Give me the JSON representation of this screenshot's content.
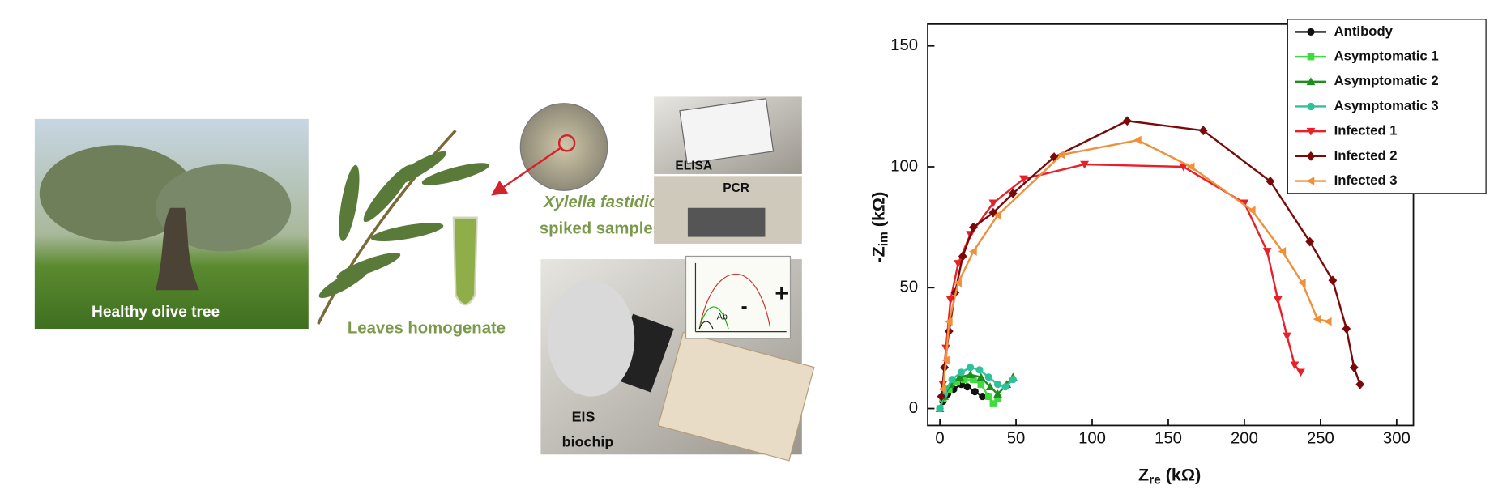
{
  "illustration": {
    "tree_label": "Healthy  olive tree",
    "leaves_label": "Leaves homogenate",
    "bacteria_label": [
      "Xylella fastidiosa",
      "spiked samples"
    ],
    "elisa_label": "ELISA",
    "pcr_label": "PCR",
    "biochip_label": [
      "EIS",
      "biochip"
    ],
    "inset_labels": [
      "Ab",
      "-",
      "+"
    ]
  },
  "chart_data": {
    "type": "scatter",
    "xlabel": [
      "Z",
      "re",
      " (kΩ)"
    ],
    "ylabel": [
      "-Z",
      "im",
      " (kΩ)"
    ],
    "xlim": [
      -8,
      311
    ],
    "ylim": [
      -7,
      159
    ],
    "xticks": [
      0,
      50,
      100,
      150,
      200,
      250,
      300
    ],
    "yticks": [
      0,
      50,
      100,
      150
    ],
    "legend": "upper right",
    "series": [
      {
        "name": "Antibody",
        "color": "#111111",
        "marker": "circle",
        "x": [
          0,
          2,
          5,
          9,
          14,
          18,
          23,
          28,
          32
        ],
        "values": [
          0,
          3,
          6,
          8,
          10,
          9,
          7,
          5,
          5
        ]
      },
      {
        "name": "Asymptomatic 1",
        "color": "#3ddc3d",
        "marker": "square",
        "x": [
          0,
          2,
          6,
          11,
          16,
          22,
          27,
          32,
          35,
          38
        ],
        "values": [
          0,
          4,
          8,
          11,
          12,
          12,
          10,
          5,
          2,
          4
        ]
      },
      {
        "name": "Asymptomatic 2",
        "color": "#1e8c1e",
        "marker": "triangle-up",
        "x": [
          0,
          3,
          7,
          13,
          20,
          27,
          33,
          38,
          44,
          48
        ],
        "values": [
          0,
          5,
          10,
          13,
          14,
          13,
          9,
          6,
          10,
          13
        ]
      },
      {
        "name": "Asymptomatic 3",
        "color": "#2ec29a",
        "marker": "circle",
        "x": [
          0,
          3,
          8,
          14,
          20,
          26,
          32,
          38,
          43,
          48
        ],
        "values": [
          0,
          6,
          12,
          15,
          17,
          16,
          13,
          10,
          9,
          12
        ]
      },
      {
        "name": "Infected 1",
        "color": "#e8202a",
        "marker": "triangle-down",
        "x": [
          2,
          4,
          7,
          12,
          20,
          35,
          55,
          95,
          160,
          200,
          215,
          222,
          228,
          233,
          237
        ],
        "values": [
          10,
          25,
          45,
          60,
          72,
          85,
          95,
          101,
          100,
          85,
          65,
          45,
          30,
          18,
          15
        ]
      },
      {
        "name": "Infected 2",
        "color": "#7a0a0a",
        "marker": "diamond",
        "x": [
          1,
          3,
          6,
          10,
          15,
          22,
          35,
          48,
          75,
          123,
          173,
          217,
          243,
          258,
          267,
          272,
          276
        ],
        "values": [
          5,
          17,
          32,
          48,
          63,
          75,
          81,
          89,
          104,
          119,
          115,
          94,
          69,
          53,
          33,
          17,
          10
        ]
      },
      {
        "name": "Infected 3",
        "color": "#f0903a",
        "marker": "triangle-left",
        "x": [
          2,
          4,
          6,
          12,
          22,
          38,
          80,
          130,
          165,
          205,
          225,
          238,
          248,
          255
        ],
        "values": [
          8,
          20,
          36,
          52,
          65,
          80,
          105,
          111,
          100,
          82,
          65,
          52,
          37,
          36
        ]
      }
    ]
  }
}
